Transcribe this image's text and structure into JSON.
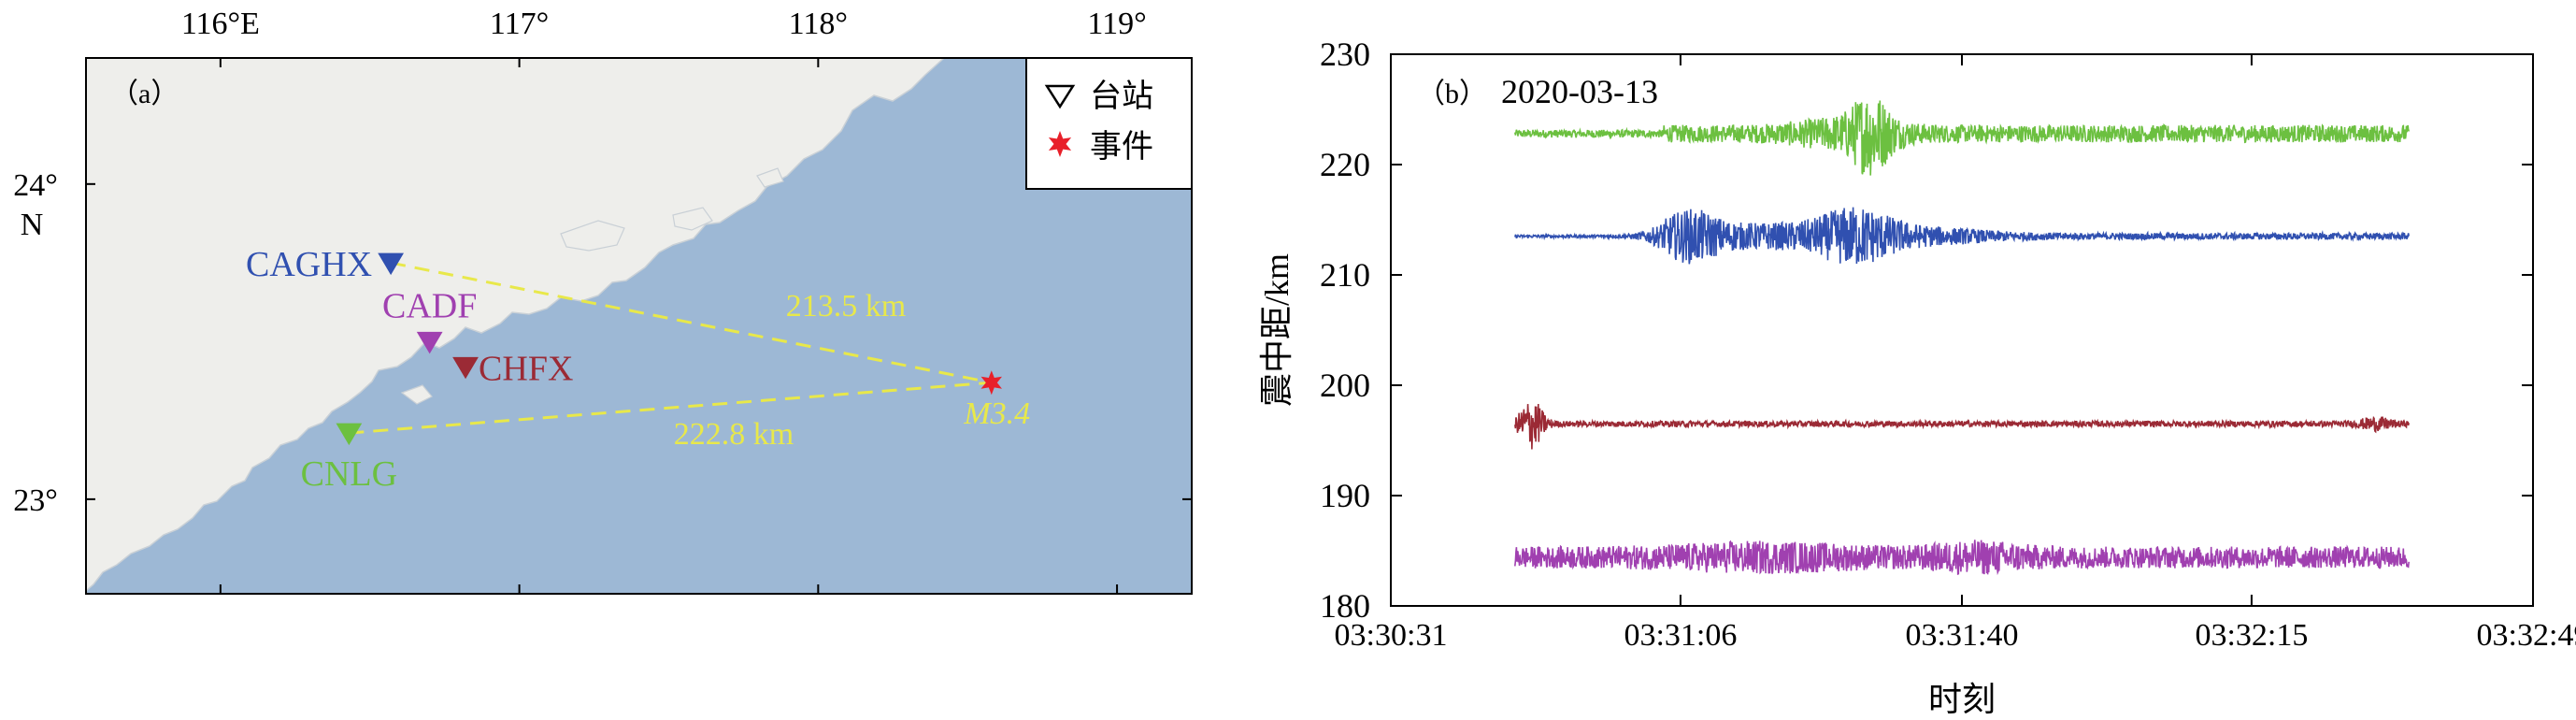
{
  "chart_data": [
    {
      "type": "map",
      "panel_label": "（a）",
      "x_ticks": [
        "116°E",
        "117°",
        "118°",
        "119°"
      ],
      "y_ticks": [
        "24°",
        "23°"
      ],
      "y_unit_label": "N",
      "legend": [
        {
          "label": "台站",
          "symbol": "open-triangle-down"
        },
        {
          "label": "事件",
          "symbol": "red-star"
        }
      ],
      "lon_range": [
        115.55,
        119.25
      ],
      "lat_range": [
        22.7,
        24.4
      ],
      "colors": {
        "land": "#eeeeeb",
        "sea": "#9db8d5",
        "dash": "#e8e84a",
        "event": "#e8202a"
      },
      "stations": [
        {
          "name": "CAGHX",
          "lon": 116.57,
          "lat": 23.75,
          "color": "#3050b0"
        },
        {
          "name": "CADF",
          "lon": 116.7,
          "lat": 23.5,
          "color": "#a040b0"
        },
        {
          "name": "CHFX",
          "lon": 116.82,
          "lat": 23.42,
          "color": "#9b2a35"
        },
        {
          "name": "CNLG",
          "lon": 116.43,
          "lat": 23.21,
          "color": "#6cc040"
        }
      ],
      "event": {
        "label": "M3.4",
        "lon": 118.58,
        "lat": 23.37
      },
      "paths": [
        {
          "from": "CAGHX",
          "distance_label": "213.5 km"
        },
        {
          "from": "CNLG",
          "distance_label": "222.8 km"
        }
      ]
    },
    {
      "type": "line",
      "panel_label": "（b）",
      "date": "2020-03-13",
      "xlabel": "时刻",
      "ylabel": "震中距/km",
      "x_ticks": [
        "03:30:31",
        "03:31:06",
        "03:31:40",
        "03:32:15",
        "03:32:49"
      ],
      "x_tick_seconds": [
        31,
        66,
        100,
        135,
        169
      ],
      "x_range_seconds": [
        31,
        169
      ],
      "ylim": [
        180,
        230
      ],
      "y_ticks": [
        180,
        190,
        200,
        210,
        220,
        230
      ],
      "trace_span_seconds": [
        46,
        154
      ],
      "series": [
        {
          "station": "CNLG",
          "distance": 222.8,
          "color": "#6cc040",
          "noise": 0.4,
          "onset": 64,
          "bursts": [
            {
              "center": 89,
              "width": 2.5,
              "amp": 2.8
            },
            {
              "center": 86,
              "width": 7,
              "amp": 0.9
            }
          ]
        },
        {
          "station": "CAGHX",
          "distance": 213.5,
          "color": "#3050b0",
          "noise": 0.15,
          "onset": 64,
          "bursts": [
            {
              "center": 67,
              "width": 4,
              "amp": 2.2
            },
            {
              "center": 76,
              "width": 8,
              "amp": 1.0
            },
            {
              "center": 87,
              "width": 5,
              "amp": 2.2
            },
            {
              "center": 94,
              "width": 10,
              "amp": 0.7
            }
          ]
        },
        {
          "station": "CHFX",
          "distance": 196.5,
          "color": "#9b2a35",
          "noise": 0.3,
          "onset": 200,
          "bursts": [
            {
              "center": 48,
              "width": 1.5,
              "amp": 2.4
            },
            {
              "center": 150,
              "width": 2,
              "amp": 0.5
            }
          ]
        },
        {
          "station": "CADF",
          "distance": 184.4,
          "color": "#a040b0",
          "noise": 1.1,
          "onset": 200,
          "bursts": [
            {
              "center": 76,
              "width": 12,
              "amp": 0.6
            },
            {
              "center": 102,
              "width": 6,
              "amp": 0.7
            }
          ]
        }
      ]
    }
  ]
}
